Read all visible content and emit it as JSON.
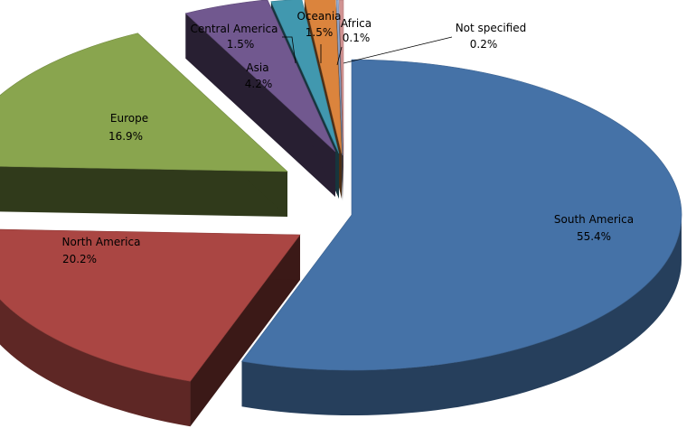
{
  "chart_data": {
    "type": "pie",
    "title": "",
    "style": "3d-exploded",
    "legend": "none",
    "slices": [
      {
        "label": "South America",
        "value": 55.4,
        "display": "55.4%",
        "color": "#4572A7"
      },
      {
        "label": "North America",
        "value": 20.2,
        "display": "20.2%",
        "color": "#AA4643"
      },
      {
        "label": "Europe",
        "value": 16.9,
        "display": "16.9%",
        "color": "#89A54E"
      },
      {
        "label": "Asia",
        "value": 4.2,
        "display": "4.2%",
        "color": "#71588F"
      },
      {
        "label": "Central America",
        "value": 1.5,
        "display": "1.5%",
        "color": "#4198AF"
      },
      {
        "label": "Oceania",
        "value": 1.5,
        "display": "1.5%",
        "color": "#DB843D"
      },
      {
        "label": "Africa",
        "value": 0.1,
        "display": "0.1%",
        "color": "#93A9CF"
      },
      {
        "label": "Not specified",
        "value": 0.2,
        "display": "0.2%",
        "color": "#D19392"
      }
    ]
  }
}
